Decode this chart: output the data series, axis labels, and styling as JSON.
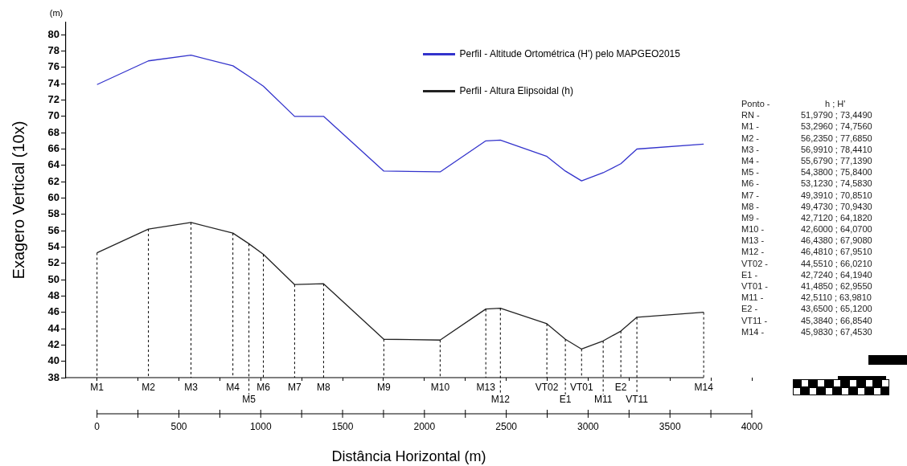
{
  "chart_data": {
    "type": "line",
    "xlabel": "Distância Horizontal (m)",
    "ylabel": "Exagero Vertical (10x)",
    "x": [
      0,
      314,
      574,
      830,
      928,
      1016,
      1207,
      1384,
      1752,
      2096,
      2375,
      2464,
      2748,
      2861,
      2960,
      3092,
      3200,
      3298,
      3706
    ],
    "series": [
      {
        "name": "Perfil - Altitude Ortométrica (H') pelo MAPGEO2015",
        "color": "#3333cc",
        "values": [
          73.9,
          76.8,
          77.5,
          76.2,
          74.9,
          73.7,
          70.0,
          70.0,
          63.3,
          63.2,
          67.0,
          67.1,
          65.1,
          63.3,
          62.1,
          63.1,
          64.2,
          66.0,
          66.6
        ]
      },
      {
        "name": "Perfil - Altura Elipsoidal (h)",
        "color": "#222222",
        "values": [
          53.3,
          56.2,
          57.0,
          55.7,
          54.4,
          53.1,
          49.4,
          49.5,
          42.7,
          42.6,
          46.4,
          46.5,
          44.6,
          42.7,
          41.5,
          42.5,
          43.7,
          45.4,
          46.0
        ]
      }
    ],
    "xlim": [
      -190,
      4000
    ],
    "xticks": [
      0,
      {
        "value": 250,
        "label": null
      },
      500,
      {
        "value": 750,
        "label": null
      },
      1000,
      {
        "value": 1250,
        "label": null
      },
      1500,
      {
        "value": 1750,
        "label": null
      },
      2000,
      {
        "value": 2250,
        "label": null
      },
      2500,
      {
        "value": 2750,
        "label": null
      },
      3000,
      {
        "value": 3250,
        "label": null
      },
      3500,
      {
        "value": 3750,
        "label": null
      },
      4000
    ],
    "ylim": [
      38,
      81.5
    ],
    "yticks": [
      38,
      40,
      42,
      44,
      46,
      48,
      50,
      52,
      54,
      56,
      58,
      60,
      62,
      64,
      66,
      68,
      70,
      72,
      74,
      76,
      78,
      80
    ],
    "legend": "top right",
    "annotations": [
      "(m)",
      "Ponto - h ; H'",
      "RN - 51,9790 ; 73,4490",
      "M1 - 53,2960 ; 74,7560",
      "M2 - 56,2350 ; 77,6850",
      "M3 - 56,9910 ; 78,4410",
      "M4 - 55,6790 ; 77,1390",
      "M5 - 54,3800 ; 75,8400",
      "M6 - 53,1230 ; 74,5830",
      "M7 - 49,3910 ; 70,8510",
      "M8 - 49,4730 ; 70,9430",
      "M9 - 42,7120 ; 64,1820",
      "M10 - 42,6000 ; 64,0700",
      "M13 - 46,4380 ; 67,9080",
      "M12 - 46,4810 ; 67,9510",
      "VT02 - 44,5510 ; 66,0210",
      "E1 - 42,7240 ; 64,1940",
      "VT01 - 41,4850 ; 62,9550",
      "M11 - 42,5110 ; 63,9810",
      "E2 - 43,6500 ; 65,1200",
      "VT11 - 45,3840 ; 66,8540",
      "M14 - 45,9830 ; 67,4530",
      {
        "text": "M1",
        "x": 0,
        "y": 53.3
      },
      {
        "text": "M2",
        "x": 314,
        "y": 56.2
      },
      {
        "text": "M3",
        "x": 574,
        "y": 57.0
      },
      {
        "text": "M4",
        "x": 830,
        "y": 55.7
      },
      {
        "text": "M5",
        "x": 928,
        "y": 54.4
      },
      {
        "text": "M6",
        "x": 1016,
        "y": 53.1
      },
      {
        "text": "M7",
        "x": 1207,
        "y": 49.4
      },
      {
        "text": "M8",
        "x": 1384,
        "y": 49.5
      },
      {
        "text": "M9",
        "x": 1752,
        "y": 42.7
      },
      {
        "text": "M10",
        "x": 2096,
        "y": 42.6
      },
      {
        "text": "M13",
        "x": 2375,
        "y": 46.4
      },
      {
        "text": "M12",
        "x": 2464,
        "y": 46.5
      },
      {
        "text": "VT02",
        "x": 2748,
        "y": 44.6
      },
      {
        "text": "E1",
        "x": 2861,
        "y": 42.7
      },
      {
        "text": "VT01",
        "x": 2960,
        "y": 41.5
      },
      {
        "text": "M11",
        "x": 3092,
        "y": 42.5
      },
      {
        "text": "E2",
        "x": 3200,
        "y": 43.7
      },
      {
        "text": "VT11",
        "x": 3298,
        "y": 45.4
      },
      {
        "text": "M14",
        "x": 3706,
        "y": 46.0
      }
    ]
  }
}
